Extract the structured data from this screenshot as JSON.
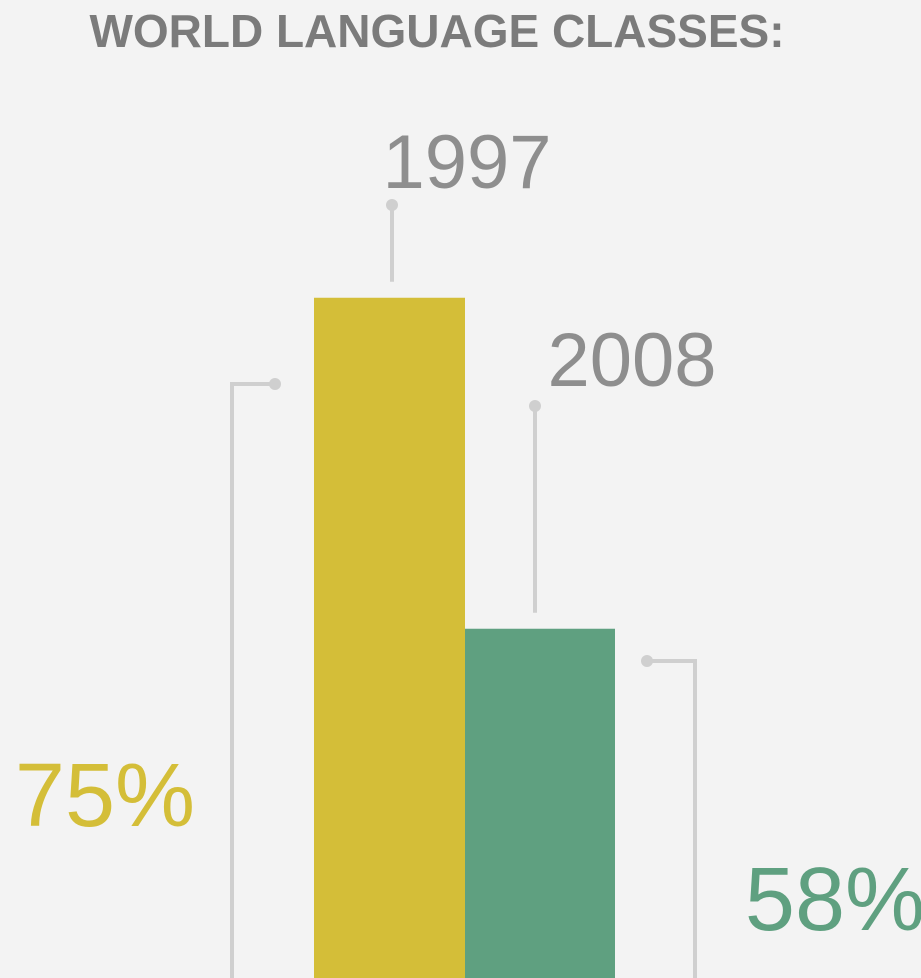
{
  "chart_data": {
    "type": "bar",
    "title": "WORLD LANGUAGE CLASSES:",
    "categories": [
      "1997",
      "2008"
    ],
    "values": [
      75,
      58
    ],
    "value_labels": [
      "75%",
      "58%"
    ],
    "colors": [
      "#d4be38",
      "#5fa080"
    ]
  }
}
